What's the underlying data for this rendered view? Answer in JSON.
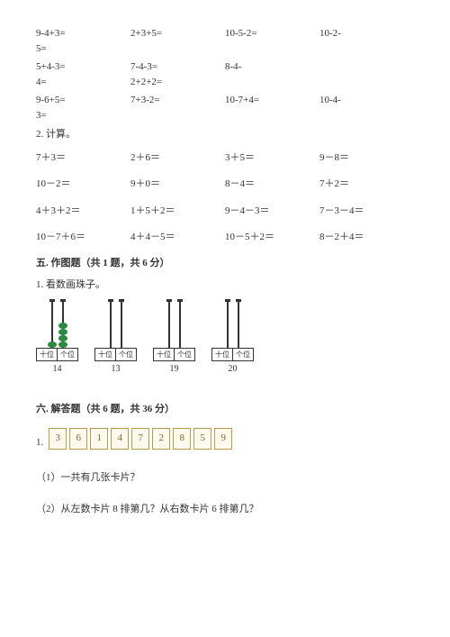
{
  "equations_block1": [
    {
      "cells": [
        "9-4+3=",
        "2+3+5=",
        "10-5-2=",
        "10-2-"
      ]
    },
    {
      "cells": [
        "5="
      ]
    },
    {
      "cells": [
        "",
        "",
        "",
        ""
      ]
    },
    {
      "cells": [
        "5+4-3=",
        "  7-4-3=",
        "  8-4-",
        ""
      ]
    },
    {
      "cells": [
        "4=",
        "  2+2+2=",
        "",
        ""
      ]
    },
    {
      "cells": [
        "",
        "",
        "",
        ""
      ]
    },
    {
      "cells": [
        "9-6+5=",
        "  7+3-2=",
        "10-7+4=",
        "  10-4-"
      ]
    },
    {
      "cells": [
        "3="
      ]
    }
  ],
  "calc_label": "2. 计算。",
  "equations_block2": [
    {
      "cells": [
        "7＋3＝",
        "2＋6＝",
        "3＋5＝",
        "9－8＝"
      ]
    },
    {
      "cells": [
        "10－2＝",
        "9＋0＝",
        "8－4＝",
        "7＋2＝"
      ]
    },
    {
      "cells": [
        "4＋3＋2＝",
        "1＋5＋2＝",
        "9－4－3＝",
        "7－3－4＝"
      ]
    },
    {
      "cells": [
        "10－7＋6＝",
        "4＋4－5＝",
        "10－5＋2＝",
        "8－2＋4＝"
      ]
    }
  ],
  "section5_title": "五. 作图题（共 1 题，共 6 分）",
  "section5_sub": "1. 看数画珠子。",
  "abacus_labels": {
    "tens": "十位",
    "ones": "个位"
  },
  "abacus_items": [
    {
      "num": "14",
      "tens_beads": 1,
      "ones_beads": 4
    },
    {
      "num": "13",
      "tens_beads": 0,
      "ones_beads": 0
    },
    {
      "num": "19",
      "tens_beads": 0,
      "ones_beads": 0
    },
    {
      "num": "20",
      "tens_beads": 0,
      "ones_beads": 0
    }
  ],
  "section6_title": "六. 解答题（共 6 题，共 36 分）",
  "section6_prefix": "1.",
  "cards": [
    "3",
    "6",
    "1",
    "4",
    "7",
    "2",
    "8",
    "5",
    "9"
  ],
  "q1": "（1）一共有几张卡片？",
  "q2": "（2）从左数卡片 8 排第几？从右数卡片 6 排第几？",
  "colors": {
    "bead": "#2b8a3e",
    "card_border": "#b89b4a",
    "card_bg": "#fdf9ec",
    "card_text": "#7a6a2e"
  }
}
